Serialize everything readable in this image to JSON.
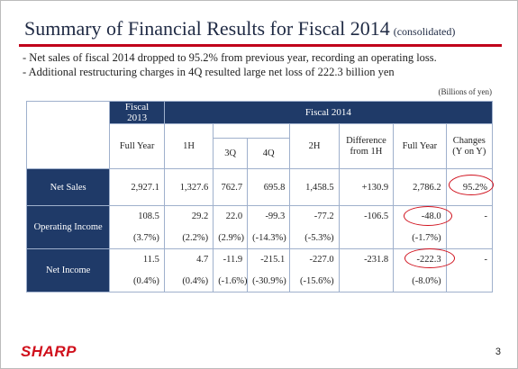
{
  "title": {
    "main": "Summary of Financial Results for Fiscal 2014",
    "sub": "(consolidated)"
  },
  "bullets": [
    "- Net sales of fiscal 2014 dropped to 95.2% from previous year, recording an operating loss.",
    "- Additional restructuring charges in 4Q resulted large net loss of 222.3 billion yen"
  ],
  "units": "(Billions of yen)",
  "table": {
    "fy2013_header": "Fiscal 2013",
    "fy2014_header": "Fiscal 2014",
    "columns": {
      "full_year_2013": "Full Year",
      "h1": "1H",
      "q3": "3Q",
      "q4": "4Q",
      "h2": "2H",
      "difference": "Difference from 1H",
      "full_year_2014": "Full Year",
      "changes": "Changes (Y on Y)"
    },
    "rows": {
      "net_sales": {
        "label": "Net Sales",
        "values": [
          "2,927.1",
          "1,327.6",
          "762.7",
          "695.8",
          "1,458.5",
          "+130.9",
          "2,786.2",
          "95.2%"
        ]
      },
      "operating_income": {
        "label": "Operating Income",
        "values": [
          "108.5",
          "29.2",
          "22.0",
          "-99.3",
          "-77.2",
          "-106.5",
          "-48.0",
          "-"
        ],
        "ratios": [
          "(3.7%)",
          "(2.2%)",
          "(2.9%)",
          "(-14.3%)",
          "(-5.3%)",
          "",
          "(-1.7%)",
          ""
        ]
      },
      "net_income": {
        "label": "Net Income",
        "values": [
          "11.5",
          "4.7",
          "-11.9",
          "-215.1",
          "-227.0",
          "-231.8",
          "-222.3",
          "-"
        ],
        "ratios": [
          "(0.4%)",
          "(0.4%)",
          "(-1.6%)",
          "(-30.9%)",
          "(-15.6%)",
          "",
          "(-8.0%)",
          ""
        ]
      }
    }
  },
  "footer": {
    "logo": "SHARP",
    "page_number": "3"
  },
  "colors": {
    "accent_red": "#d0101c",
    "header_navy": "#1f3a68",
    "title_line": "#c0001a"
  }
}
